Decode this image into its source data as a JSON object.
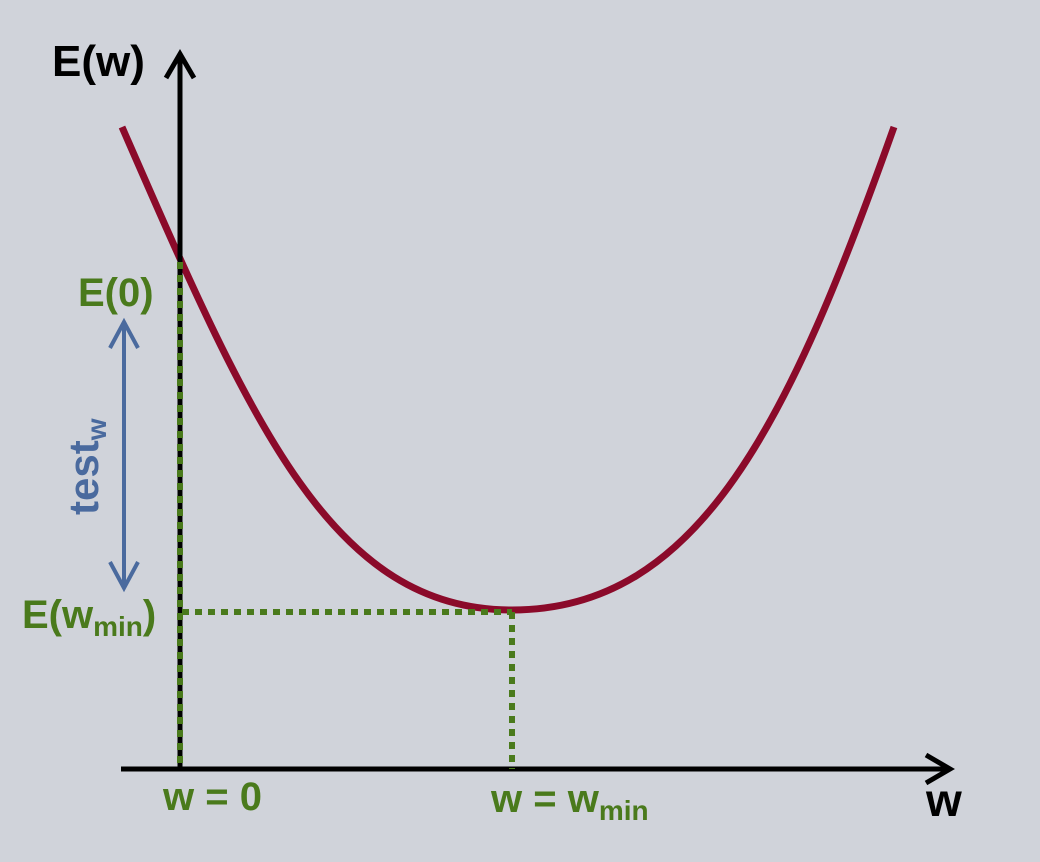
{
  "diagram": {
    "y_axis_label": "E(w)",
    "x_axis_label": "w",
    "e0_label": "E(0)",
    "ewmin_label": {
      "main": "E(w",
      "sub": "min",
      "close": ")"
    },
    "w0_label": "w = 0",
    "wmin_label": {
      "main": "w = w",
      "sub": "min"
    },
    "test_label": {
      "main": "test",
      "sub": "w"
    }
  },
  "colors": {
    "background": "#d0d3da",
    "curve": "#8b0a2a",
    "axes": "#000000",
    "guides": "#4a7a1c",
    "arrow": "#4a6a9e"
  }
}
